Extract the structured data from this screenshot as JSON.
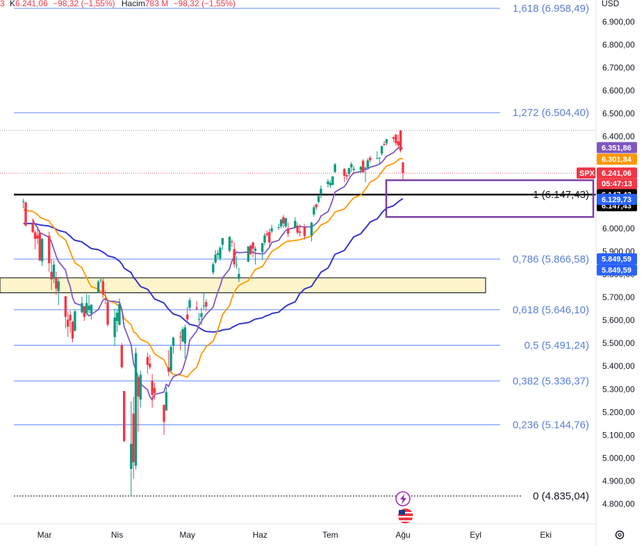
{
  "legend": {
    "prefix": "3",
    "close_label": "K",
    "close_value": "6.241,06",
    "change": "−98,32 (−1,55%)",
    "volume_label": "Hacim",
    "volume_value": "783 M",
    "volume_change": "−98,32 (−1,55%)"
  },
  "currency": "USD",
  "symbol": "SPX",
  "countdown": "05:47:13",
  "colors": {
    "up": "#089981",
    "down": "#f23645",
    "ma_fast": "#7e57c2",
    "ma_mid": "#ff9800",
    "ma_slow": "#3434c9",
    "fib": "#2962ff",
    "box": "#7b3fa0",
    "zone": "#fff5cc"
  },
  "chart_data": {
    "type": "candlestick",
    "x_labels": [
      "Mar",
      "Nis",
      "May",
      "Haz",
      "Tem",
      "Ağu",
      "Eyl",
      "Eki"
    ],
    "y_ticks": [
      "6.900,00",
      "6.800,00",
      "6.700,00",
      "6.600,00",
      "6.500,00",
      "6.400,00",
      "6.300,00",
      "6.200,00",
      "6.100,00",
      "6.000,00",
      "5.900,00",
      "5.800,00",
      "5.700,00",
      "5.600,00",
      "5.500,00",
      "5.400,00",
      "5.300,00",
      "5.200,00",
      "5.100,00",
      "5.000,00",
      "4.900,00",
      "4.800,00"
    ],
    "y_tick_values": [
      6900,
      6800,
      6700,
      6600,
      6500,
      6400,
      6300,
      6200,
      6100,
      6000,
      5900,
      5800,
      5700,
      5600,
      5500,
      5400,
      5300,
      5200,
      5100,
      5000,
      4900,
      4800
    ],
    "ylim": [
      4760,
      7010
    ],
    "fib_levels": [
      {
        "label": "1,618 (6.958,49)",
        "value": 6958.49
      },
      {
        "label": "1,272 (6.504,40)",
        "value": 6504.4
      },
      {
        "label": "1 (6.147,43)",
        "value": 6147.43
      },
      {
        "label": "0,786 (5.866,58)",
        "value": 5866.58
      },
      {
        "label": "0,618 (5.646,10)",
        "value": 5646.1
      },
      {
        "label": "0,5 (5.491,24)",
        "value": 5491.24
      },
      {
        "label": "0,382 (5.336,37)",
        "value": 5336.37
      },
      {
        "label": "0,236 (5.144,76)",
        "value": 5144.76
      },
      {
        "label": "0 (4.835,04)",
        "value": 4835.04
      }
    ],
    "price_tags": [
      {
        "text": "6.351,86",
        "value": 6351.86,
        "color": "#7e57c2"
      },
      {
        "text": "6.301,84",
        "value": 6301.84,
        "color": "#ff9800"
      },
      {
        "text": "6.241,06",
        "value": 6241.06,
        "color": "#f23645"
      },
      {
        "text": "6.147,43",
        "value": 6147.43,
        "color": "#000000"
      },
      {
        "text": "6.147,43",
        "value": 6147.43,
        "color": "#000000"
      },
      {
        "text": "6.129,73",
        "value": 6129.73,
        "color": "#2962ff"
      },
      {
        "text": "5.849,59",
        "value": 5849.59,
        "color": "#2962ff"
      },
      {
        "text": "5.849,59",
        "value": 5849.59,
        "color": "#2962ff"
      }
    ],
    "zone": {
      "low": 5720,
      "high": 5785
    },
    "box": {
      "low": 6050,
      "high": 6210
    },
    "ohlc": [
      {
        "d": "2025-02-20",
        "o": 6117,
        "h": 6129,
        "l": 6088,
        "c": 6118
      },
      {
        "d": "2025-02-21",
        "o": 6114,
        "h": 6114,
        "l": 6008,
        "c": 6013
      },
      {
        "d": "2025-02-24",
        "o": 6026,
        "h": 6043,
        "l": 5982,
        "c": 5983
      },
      {
        "d": "2025-02-25",
        "o": 5983,
        "h": 5993,
        "l": 5909,
        "c": 5955
      },
      {
        "d": "2025-02-26",
        "o": 5970,
        "h": 6009,
        "l": 5933,
        "c": 5956
      },
      {
        "d": "2025-02-27",
        "o": 5981,
        "h": 5994,
        "l": 5858,
        "c": 5861
      },
      {
        "d": "2025-02-28",
        "o": 5857,
        "h": 5959,
        "l": 5837,
        "c": 5955
      },
      {
        "d": "2025-03-03",
        "o": 5968,
        "h": 5986,
        "l": 5810,
        "c": 5849
      },
      {
        "d": "2025-03-04",
        "o": 5811,
        "h": 5865,
        "l": 5732,
        "c": 5778
      },
      {
        "d": "2025-03-05",
        "o": 5781,
        "h": 5861,
        "l": 5762,
        "c": 5842
      },
      {
        "d": "2025-03-06",
        "o": 5785,
        "h": 5812,
        "l": 5711,
        "c": 5738
      },
      {
        "d": "2025-03-07",
        "o": 5726,
        "h": 5783,
        "l": 5666,
        "c": 5770
      },
      {
        "d": "2025-03-10",
        "o": 5705,
        "h": 5705,
        "l": 5564,
        "c": 5615
      },
      {
        "d": "2025-03-11",
        "o": 5603,
        "h": 5636,
        "l": 5528,
        "c": 5572
      },
      {
        "d": "2025-03-12",
        "o": 5624,
        "h": 5642,
        "l": 5546,
        "c": 5599
      },
      {
        "d": "2025-03-13",
        "o": 5594,
        "h": 5598,
        "l": 5504,
        "c": 5521
      },
      {
        "d": "2025-03-14",
        "o": 5555,
        "h": 5645,
        "l": 5550,
        "c": 5639
      },
      {
        "d": "2025-03-17",
        "o": 5635,
        "h": 5703,
        "l": 5630,
        "c": 5675
      },
      {
        "d": "2025-03-18",
        "o": 5662,
        "h": 5662,
        "l": 5597,
        "c": 5615
      },
      {
        "d": "2025-03-19",
        "o": 5632,
        "h": 5715,
        "l": 5622,
        "c": 5675
      },
      {
        "d": "2025-03-20",
        "o": 5646,
        "h": 5711,
        "l": 5632,
        "c": 5663
      },
      {
        "d": "2025-03-21",
        "o": 5630,
        "h": 5670,
        "l": 5603,
        "c": 5668
      },
      {
        "d": "2025-03-24",
        "o": 5718,
        "h": 5775,
        "l": 5718,
        "c": 5768
      },
      {
        "d": "2025-03-25",
        "o": 5775,
        "h": 5787,
        "l": 5764,
        "c": 5777
      },
      {
        "d": "2025-03-26",
        "o": 5771,
        "h": 5784,
        "l": 5695,
        "c": 5712
      },
      {
        "d": "2025-03-27",
        "o": 5696,
        "h": 5732,
        "l": 5670,
        "c": 5693
      },
      {
        "d": "2025-03-28",
        "o": 5679,
        "h": 5685,
        "l": 5572,
        "c": 5581
      },
      {
        "d": "2025-03-31",
        "o": 5527,
        "h": 5650,
        "l": 5488,
        "c": 5612
      },
      {
        "d": "2025-04-01",
        "o": 5597,
        "h": 5650,
        "l": 5550,
        "c": 5633
      },
      {
        "d": "2025-04-02",
        "o": 5580,
        "h": 5695,
        "l": 5578,
        "c": 5671
      },
      {
        "d": "2025-04-03",
        "o": 5492,
        "h": 5500,
        "l": 5390,
        "c": 5396
      },
      {
        "d": "2025-04-04",
        "o": 5292,
        "h": 5292,
        "l": 5069,
        "c": 5074
      },
      {
        "d": "2025-04-07",
        "o": 4953,
        "h": 5247,
        "l": 4835,
        "c": 5062
      },
      {
        "d": "2025-04-08",
        "o": 5194,
        "h": 5267,
        "l": 4910,
        "c": 4982
      },
      {
        "d": "2025-04-09",
        "o": 4967,
        "h": 5481,
        "l": 4950,
        "c": 5457
      },
      {
        "d": "2025-04-10",
        "o": 5353,
        "h": 5353,
        "l": 5115,
        "c": 5268
      },
      {
        "d": "2025-04-11",
        "o": 5255,
        "h": 5381,
        "l": 5220,
        "c": 5363
      },
      {
        "d": "2025-04-14",
        "o": 5441,
        "h": 5459,
        "l": 5368,
        "c": 5406
      },
      {
        "d": "2025-04-15",
        "o": 5411,
        "h": 5450,
        "l": 5386,
        "c": 5396
      },
      {
        "d": "2025-04-16",
        "o": 5335,
        "h": 5367,
        "l": 5220,
        "c": 5275
      },
      {
        "d": "2025-04-17",
        "o": 5305,
        "h": 5328,
        "l": 5255,
        "c": 5283
      },
      {
        "d": "2025-04-21",
        "o": 5232,
        "h": 5232,
        "l": 5101,
        "c": 5158
      },
      {
        "d": "2025-04-22",
        "o": 5207,
        "h": 5309,
        "l": 5207,
        "c": 5287
      },
      {
        "d": "2025-04-23",
        "o": 5395,
        "h": 5469,
        "l": 5356,
        "c": 5376
      },
      {
        "d": "2025-04-24",
        "o": 5381,
        "h": 5489,
        "l": 5371,
        "c": 5484
      },
      {
        "d": "2025-04-25",
        "o": 5489,
        "h": 5528,
        "l": 5455,
        "c": 5525
      },
      {
        "d": "2025-04-28",
        "o": 5529,
        "h": 5553,
        "l": 5469,
        "c": 5528
      },
      {
        "d": "2025-04-29",
        "o": 5508,
        "h": 5572,
        "l": 5505,
        "c": 5561
      },
      {
        "d": "2025-04-30",
        "o": 5499,
        "h": 5581,
        "l": 5433,
        "c": 5569
      },
      {
        "d": "2025-05-01",
        "o": 5625,
        "h": 5659,
        "l": 5597,
        "c": 5604
      },
      {
        "d": "2025-05-02",
        "o": 5655,
        "h": 5700,
        "l": 5640,
        "c": 5687
      },
      {
        "d": "2025-05-05",
        "o": 5655,
        "h": 5684,
        "l": 5643,
        "c": 5650
      },
      {
        "d": "2025-05-06",
        "o": 5605,
        "h": 5632,
        "l": 5589,
        "c": 5606
      },
      {
        "d": "2025-05-07",
        "o": 5614,
        "h": 5655,
        "l": 5579,
        "c": 5631
      },
      {
        "d": "2025-05-08",
        "o": 5663,
        "h": 5720,
        "l": 5645,
        "c": 5664
      },
      {
        "d": "2025-05-09",
        "o": 5679,
        "h": 5692,
        "l": 5639,
        "c": 5660
      },
      {
        "d": "2025-05-12",
        "o": 5808,
        "h": 5853,
        "l": 5798,
        "c": 5844
      },
      {
        "d": "2025-05-13",
        "o": 5852,
        "h": 5906,
        "l": 5846,
        "c": 5886
      },
      {
        "d": "2025-05-14",
        "o": 5885,
        "h": 5906,
        "l": 5868,
        "c": 5892
      },
      {
        "d": "2025-05-15",
        "o": 5870,
        "h": 5924,
        "l": 5860,
        "c": 5916
      },
      {
        "d": "2025-05-16",
        "o": 5929,
        "h": 5958,
        "l": 5907,
        "c": 5958
      },
      {
        "d": "2025-05-19",
        "o": 5903,
        "h": 5968,
        "l": 5896,
        "c": 5963
      },
      {
        "d": "2025-05-20",
        "o": 5944,
        "h": 5953,
        "l": 5919,
        "c": 5940
      },
      {
        "d": "2025-05-21",
        "o": 5910,
        "h": 5939,
        "l": 5830,
        "c": 5844
      },
      {
        "d": "2025-05-22",
        "o": 5841,
        "h": 5878,
        "l": 5825,
        "c": 5842
      },
      {
        "d": "2025-05-23",
        "o": 5781,
        "h": 5829,
        "l": 5767,
        "c": 5802
      },
      {
        "d": "2025-05-27",
        "o": 5855,
        "h": 5922,
        "l": 5855,
        "c": 5922
      },
      {
        "d": "2025-05-28",
        "o": 5925,
        "h": 5930,
        "l": 5883,
        "c": 5889
      },
      {
        "d": "2025-05-29",
        "o": 5939,
        "h": 5943,
        "l": 5874,
        "c": 5912
      },
      {
        "d": "2025-05-30",
        "o": 5903,
        "h": 5922,
        "l": 5843,
        "c": 5912
      },
      {
        "d": "2025-06-02",
        "o": 5897,
        "h": 5937,
        "l": 5862,
        "c": 5936
      },
      {
        "d": "2025-06-03",
        "o": 5938,
        "h": 5981,
        "l": 5926,
        "c": 5970
      },
      {
        "d": "2025-06-04",
        "o": 5978,
        "h": 5990,
        "l": 5966,
        "c": 5971
      },
      {
        "d": "2025-06-05",
        "o": 5985,
        "h": 5999,
        "l": 5921,
        "c": 5939
      },
      {
        "d": "2025-06-06",
        "o": 5987,
        "h": 6016,
        "l": 5978,
        "c": 6000
      },
      {
        "d": "2025-06-09",
        "o": 6005,
        "h": 6021,
        "l": 5994,
        "c": 6006
      },
      {
        "d": "2025-06-10",
        "o": 6009,
        "h": 6043,
        "l": 6000,
        "c": 6038
      },
      {
        "d": "2025-06-11",
        "o": 6049,
        "h": 6059,
        "l": 6002,
        "c": 6022
      },
      {
        "d": "2025-06-12",
        "o": 6009,
        "h": 6045,
        "l": 6003,
        "c": 6045
      },
      {
        "d": "2025-06-13",
        "o": 6000,
        "h": 6026,
        "l": 5963,
        "c": 5977
      },
      {
        "d": "2025-06-16",
        "o": 6004,
        "h": 6050,
        "l": 6004,
        "c": 6033
      },
      {
        "d": "2025-06-17",
        "o": 6012,
        "h": 6024,
        "l": 5974,
        "c": 5982
      },
      {
        "d": "2025-06-18",
        "o": 5987,
        "h": 6018,
        "l": 5966,
        "c": 5981
      },
      {
        "d": "2025-06-20",
        "o": 6004,
        "h": 6018,
        "l": 5952,
        "c": 5967
      },
      {
        "d": "2025-06-23",
        "o": 5969,
        "h": 6030,
        "l": 5943,
        "c": 6025
      },
      {
        "d": "2025-06-24",
        "o": 6061,
        "h": 6101,
        "l": 6051,
        "c": 6092
      },
      {
        "d": "2025-06-25",
        "o": 6105,
        "h": 6109,
        "l": 6080,
        "c": 6092
      },
      {
        "d": "2025-06-26",
        "o": 6115,
        "h": 6146,
        "l": 6109,
        "c": 6141
      },
      {
        "d": "2025-06-27",
        "o": 6151,
        "h": 6187,
        "l": 6132,
        "c": 6173
      },
      {
        "d": "2025-06-30",
        "o": 6193,
        "h": 6215,
        "l": 6178,
        "c": 6205
      },
      {
        "d": "2025-07-01",
        "o": 6188,
        "h": 6210,
        "l": 6177,
        "c": 6198
      },
      {
        "d": "2025-07-02",
        "o": 6190,
        "h": 6227,
        "l": 6187,
        "c": 6227
      },
      {
        "d": "2025-07-03",
        "o": 6246,
        "h": 6285,
        "l": 6242,
        "c": 6279
      },
      {
        "d": "2025-07-07",
        "o": 6259,
        "h": 6263,
        "l": 6201,
        "c": 6230
      },
      {
        "d": "2025-07-08",
        "o": 6232,
        "h": 6243,
        "l": 6211,
        "c": 6226
      },
      {
        "d": "2025-07-09",
        "o": 6238,
        "h": 6265,
        "l": 6226,
        "c": 6263
      },
      {
        "d": "2025-07-10",
        "o": 6266,
        "h": 6290,
        "l": 6246,
        "c": 6280
      },
      {
        "d": "2025-07-11",
        "o": 6255,
        "h": 6272,
        "l": 6243,
        "c": 6260
      },
      {
        "d": "2025-07-14",
        "o": 6255,
        "h": 6273,
        "l": 6238,
        "c": 6268
      },
      {
        "d": "2025-07-15",
        "o": 6295,
        "h": 6302,
        "l": 6242,
        "c": 6244
      },
      {
        "d": "2025-07-16",
        "o": 6260,
        "h": 6270,
        "l": 6201,
        "c": 6264
      },
      {
        "d": "2025-07-17",
        "o": 6264,
        "h": 6306,
        "l": 6262,
        "c": 6297
      },
      {
        "d": "2025-07-18",
        "o": 6308,
        "h": 6316,
        "l": 6285,
        "c": 6297
      },
      {
        "d": "2025-07-21",
        "o": 6304,
        "h": 6336,
        "l": 6303,
        "c": 6305
      },
      {
        "d": "2025-07-22",
        "o": 6307,
        "h": 6310,
        "l": 6281,
        "c": 6309
      },
      {
        "d": "2025-07-23",
        "o": 6326,
        "h": 6360,
        "l": 6317,
        "c": 6359
      },
      {
        "d": "2025-07-24",
        "o": 6368,
        "h": 6381,
        "l": 6361,
        "c": 6363
      },
      {
        "d": "2025-07-25",
        "o": 6371,
        "h": 6389,
        "l": 6362,
        "c": 6389
      },
      {
        "d": "2025-07-28",
        "o": 6397,
        "h": 6401,
        "l": 6375,
        "c": 6390
      },
      {
        "d": "2025-07-29",
        "o": 6409,
        "h": 6410,
        "l": 6360,
        "c": 6371
      },
      {
        "d": "2025-07-30",
        "o": 6379,
        "h": 6409,
        "l": 6346,
        "c": 6362
      },
      {
        "d": "2025-07-31",
        "o": 6427,
        "h": 6427,
        "l": 6331,
        "c": 6339
      },
      {
        "d": "2025-08-01",
        "o": 6288,
        "h": 6288,
        "l": 6213,
        "c": 6241
      }
    ]
  }
}
